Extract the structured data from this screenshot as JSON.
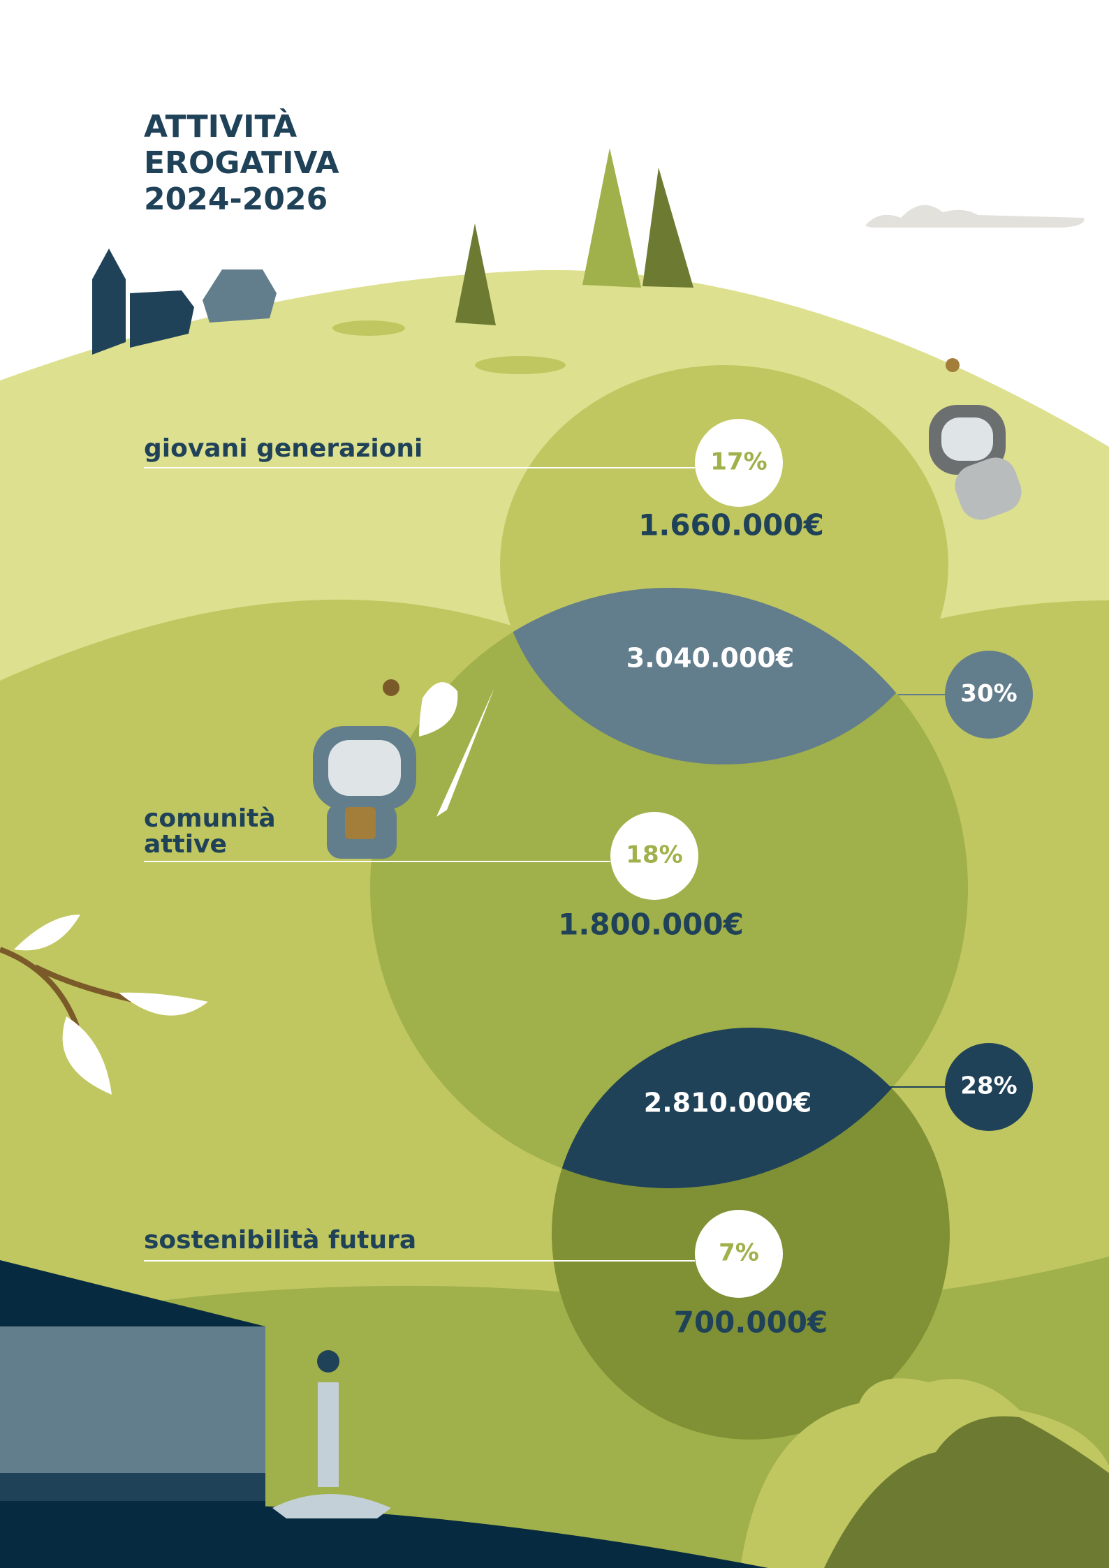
{
  "title": [
    "ATTIVITÀ",
    "EROGATIVA",
    "2024-2026"
  ],
  "areas": [
    {
      "label": [
        "giovani generazioni"
      ],
      "percent": "17%",
      "amount": "1.660.000€"
    },
    {
      "label": [
        "comunità",
        "attive"
      ],
      "percent": "18%",
      "amount": "1.800.000€"
    },
    {
      "label": [
        "sostenibilità futura"
      ],
      "percent": "7%",
      "amount": "700.000€"
    }
  ],
  "overlaps": [
    {
      "amount": "3.040.000€",
      "percent": "30%"
    },
    {
      "amount": "2.810.000€",
      "percent": "28%"
    }
  ]
}
